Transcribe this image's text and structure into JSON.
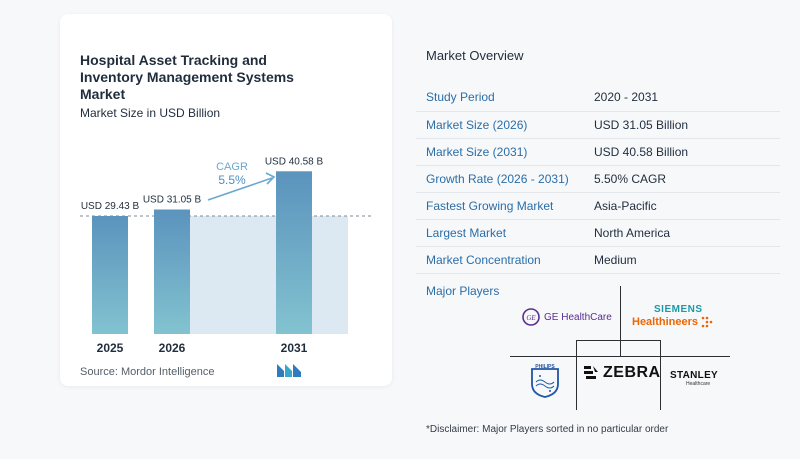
{
  "chart_data": {
    "type": "bar",
    "title": "Hospital Asset Tracking and Inventory Management Systems Market",
    "subtitle": "Market Size in USD Billion",
    "categories": [
      "2025",
      "2026",
      "2031"
    ],
    "values": [
      29.43,
      31.05,
      40.58
    ],
    "data_labels": [
      "USD 29.43 B",
      "USD 31.05 B",
      "USD 40.58 B"
    ],
    "cagr_label": "CAGR",
    "cagr_value": "5.5%",
    "colors": {
      "bar_top": "#5b93bd",
      "bar_bottom": "#82c3d0",
      "band": "#dce9f2",
      "arrow": "#6aa8d2"
    }
  },
  "source": "Source:  Mordor Intelligence",
  "overview": {
    "title": "Market Overview",
    "rows": [
      {
        "key": "Study Period",
        "value": "2020 - 2031"
      },
      {
        "key": "Market Size (2026)",
        "value": "USD 31.05 Billion"
      },
      {
        "key": "Market Size (2031)",
        "value": "USD 40.58 Billion"
      },
      {
        "key": "Growth Rate (2026 - 2031)",
        "value": "5.50% CAGR"
      },
      {
        "key": "Fastest Growing Market",
        "value": "Asia-Pacific"
      },
      {
        "key": "Largest Market",
        "value": "North America"
      },
      {
        "key": "Market Concentration",
        "value": "Medium"
      }
    ]
  },
  "players": {
    "title": "Major Players",
    "logos": {
      "ge": "GE HealthCare",
      "siemens_top": "SIEMENS",
      "siemens_bottom": "Healthineers",
      "philips": "PHILIPS",
      "zebra": "ZEBRA",
      "stanley_top": "STANLEY",
      "stanley_bottom": "Healthcare"
    }
  },
  "disclaimer": "*Disclaimer: Major Players sorted in no particular order"
}
